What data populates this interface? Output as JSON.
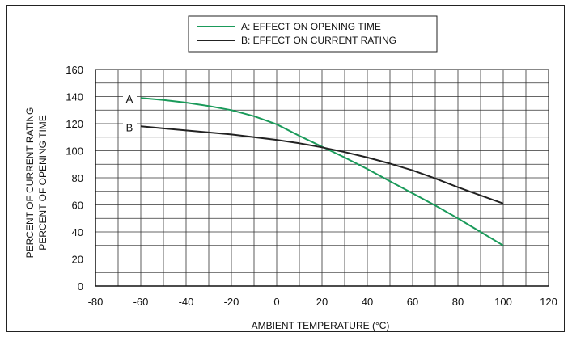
{
  "chart_data": {
    "type": "line",
    "xlabel": "AMBIENT TEMPERATURE (°C)",
    "ylabel_line1": "PERCENT OF CURRENT RATING",
    "ylabel_line2": "PERCENT OF OPENING TIME",
    "xlim": [
      -80,
      120
    ],
    "ylim": [
      0,
      160
    ],
    "x_ticks": [
      -80,
      -60,
      -40,
      -20,
      0,
      20,
      40,
      60,
      80,
      100,
      120
    ],
    "y_ticks": [
      0,
      20,
      40,
      60,
      80,
      100,
      120,
      140,
      160
    ],
    "x_minor_step": 10,
    "y_minor_step": 10,
    "grid": true,
    "legend_position": "top-center",
    "series": [
      {
        "name": "A: EFFECT ON OPENING TIME",
        "label": "A",
        "color": "#1a9a5a",
        "x": [
          -60,
          -50,
          -40,
          -30,
          -20,
          -10,
          0,
          10,
          20,
          30,
          40,
          50,
          60,
          70,
          80,
          90,
          100
        ],
        "y": [
          139,
          137.5,
          135.5,
          133,
          130,
          125.5,
          119.5,
          111,
          103,
          95,
          86.5,
          77.5,
          68.5,
          59.5,
          50,
          40,
          30
        ]
      },
      {
        "name": "B: EFFECT ON CURRENT RATING",
        "label": "B",
        "color": "#222222",
        "x": [
          -60,
          -50,
          -40,
          -30,
          -20,
          -10,
          0,
          10,
          20,
          30,
          40,
          50,
          60,
          70,
          80,
          90,
          100
        ],
        "y": [
          118,
          116.5,
          115,
          113.5,
          112,
          110,
          108,
          105.5,
          102.5,
          99,
          95,
          90.5,
          85.5,
          79.5,
          73,
          67,
          61
        ]
      }
    ]
  }
}
